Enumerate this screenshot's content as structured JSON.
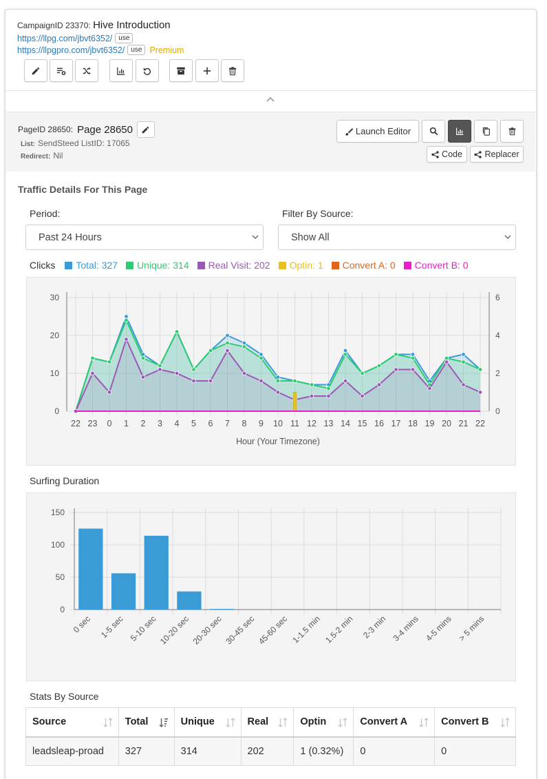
{
  "campaign": {
    "id_label": "CampaignID 23370:",
    "name": "Hive Introduction",
    "url1": "https://llpg.com/jbvt6352/",
    "url2": "https://llpgpro.com/jbvt6352/",
    "use_label": "use",
    "premium_label": "Premium"
  },
  "toolbar": [
    {
      "icon": "edit-icon"
    },
    {
      "icon": "playlist-add-icon"
    },
    {
      "icon": "shuffle-icon"
    },
    {
      "icon": "bar-chart-icon"
    },
    {
      "icon": "undo-icon"
    },
    {
      "icon": "archive-icon"
    },
    {
      "icon": "plus-icon"
    },
    {
      "icon": "trash-icon"
    }
  ],
  "page": {
    "id_label": "PageID 28650:",
    "name": "Page 28650",
    "list_label": "List:",
    "list_value": "SendSteed ListID: 17065",
    "redirect_label": "Redirect:",
    "redirect_value": "Nil",
    "launch_editor": "Launch Editor",
    "code": "Code",
    "replacer": "Replacer"
  },
  "traffic": {
    "title": "Traffic Details For This Page",
    "period_label": "Period:",
    "period_value": "Past 24 Hours",
    "filter_label": "Filter By Source:",
    "filter_value": "Show All",
    "clicks_label": "Clicks",
    "legend": [
      {
        "text": "Total: 327",
        "color": "#3a9bd6"
      },
      {
        "text": "Unique: 314",
        "color": "#2ecc71"
      },
      {
        "text": "Real Visit: 202",
        "color": "#9b59b6"
      },
      {
        "text": "Optin: 1",
        "color": "#e8c21a"
      },
      {
        "text": "Convert A: 0",
        "color": "#e0651a"
      },
      {
        "text": "Convert B: 0",
        "color": "#e91ec8"
      }
    ]
  },
  "surfing_title": "Surfing Duration",
  "stats": {
    "title": "Stats By Source",
    "headers": [
      "Source",
      "Total",
      "Unique",
      "Real",
      "Optin",
      "Convert A",
      "Convert B"
    ],
    "rows": [
      [
        "leadsleap-proad",
        "327",
        "314",
        "202",
        "1 (0.32%)",
        "0",
        "0"
      ]
    ]
  },
  "chart_data": [
    {
      "type": "line",
      "x": [
        "22",
        "23",
        "0",
        "1",
        "2",
        "3",
        "4",
        "5",
        "6",
        "7",
        "8",
        "9",
        "10",
        "11",
        "12",
        "13",
        "14",
        "15",
        "16",
        "17",
        "18",
        "19",
        "20",
        "21",
        "22"
      ],
      "xlabel": "Hour (Your Timezone)",
      "ylim": [
        0,
        30
      ],
      "y2lim": [
        0,
        6
      ],
      "yticks": [
        0,
        10,
        20,
        30
      ],
      "y2ticks": [
        0,
        2,
        4,
        6
      ],
      "series": [
        {
          "name": "Total",
          "color": "#3a9bd6",
          "values": [
            0,
            14,
            13,
            25,
            15,
            12,
            21,
            11,
            16,
            20,
            18,
            15,
            9,
            8,
            7,
            7,
            16,
            10,
            12,
            15,
            15,
            8,
            14,
            15,
            11
          ]
        },
        {
          "name": "Unique",
          "color": "#2ecc71",
          "values": [
            0,
            14,
            13,
            24,
            14,
            12,
            21,
            11,
            16,
            18,
            17,
            14,
            8,
            8,
            7,
            6,
            15,
            10,
            12,
            15,
            14,
            7,
            14,
            13,
            11
          ]
        },
        {
          "name": "Real Visit",
          "color": "#9b59b6",
          "values": [
            0,
            10,
            5,
            19,
            9,
            11,
            10,
            8,
            8,
            16,
            10,
            8,
            5,
            3,
            4,
            4,
            8,
            4,
            7,
            11,
            11,
            6,
            13,
            7,
            5
          ]
        },
        {
          "name": "Optin",
          "color": "#e8c21a",
          "axis": "right",
          "values": [
            0,
            0,
            0,
            0,
            0,
            0,
            0,
            0,
            0,
            0,
            0,
            0,
            0,
            1,
            0,
            0,
            0,
            0,
            0,
            0,
            0,
            0,
            0,
            0,
            0
          ]
        },
        {
          "name": "Convert A",
          "color": "#e0651a",
          "values": [
            0,
            0,
            0,
            0,
            0,
            0,
            0,
            0,
            0,
            0,
            0,
            0,
            0,
            0,
            0,
            0,
            0,
            0,
            0,
            0,
            0,
            0,
            0,
            0,
            0
          ]
        },
        {
          "name": "Convert B",
          "color": "#e91ec8",
          "values": [
            0,
            0,
            0,
            0,
            0,
            0,
            0,
            0,
            0,
            0,
            0,
            0,
            0,
            0,
            0,
            0,
            0,
            0,
            0,
            0,
            0,
            0,
            0,
            0,
            0
          ]
        }
      ],
      "grid": true
    },
    {
      "type": "bar",
      "categories": [
        "0 sec",
        "1-5 sec",
        "5-10 sec",
        "10-20 sec",
        "20-30 sec",
        "30-45 sec",
        "45-60 sec",
        "1-1.5 min",
        "1.5-2 min",
        "2-3 min",
        "3-4 mins",
        "4-5 mins",
        "> 5 mins"
      ],
      "values": [
        125,
        56,
        114,
        28,
        1,
        0,
        0,
        0,
        0,
        0,
        0,
        0,
        0
      ],
      "color": "#3a9bd6",
      "ylim": [
        0,
        150
      ],
      "yticks": [
        0,
        50,
        100,
        150
      ],
      "grid": true
    }
  ]
}
